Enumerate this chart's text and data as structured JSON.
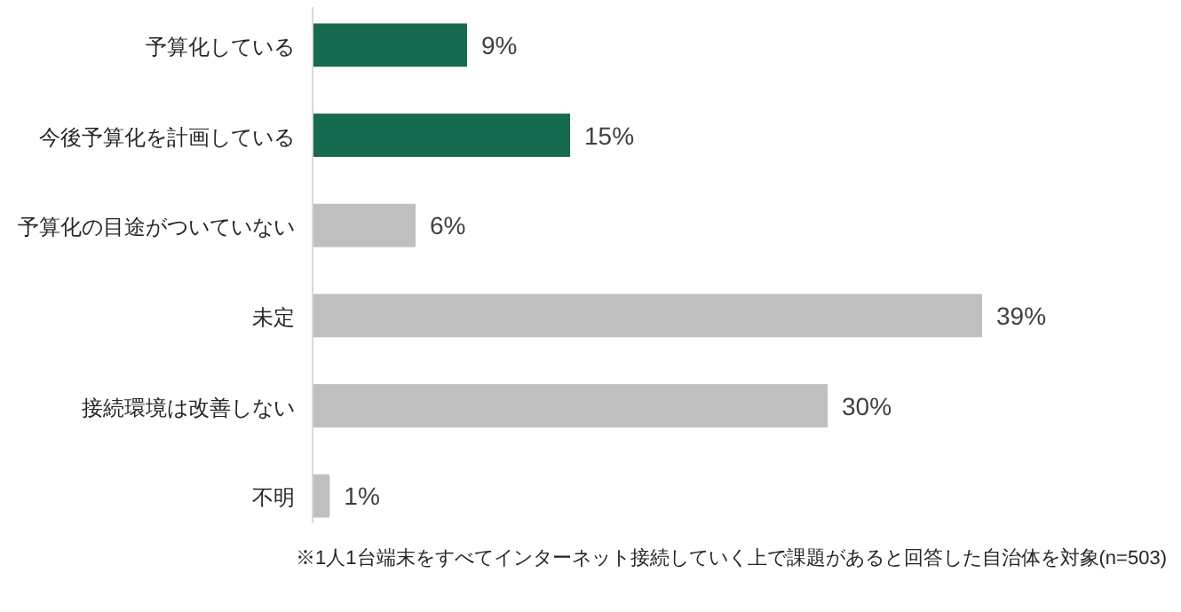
{
  "chart_data": {
    "type": "bar",
    "orientation": "horizontal",
    "categories": [
      "予算化している",
      "今後予算化を計画している",
      "予算化の目途がついていない",
      "未定",
      "接続環境は改善しない",
      "不明"
    ],
    "values": [
      9,
      15,
      6,
      39,
      30,
      1
    ],
    "colors": [
      "#17694f",
      "#17694f",
      "#bfbfbf",
      "#bfbfbf",
      "#bfbfbf",
      "#bfbfbf"
    ],
    "value_labels": [
      "9%",
      "15%",
      "6%",
      "39%",
      "30%",
      "1%"
    ],
    "annotations": [
      "※1人1台端末をすべてインターネット接続していく上で課題があると回答した自治体を対象(n=503)"
    ]
  }
}
